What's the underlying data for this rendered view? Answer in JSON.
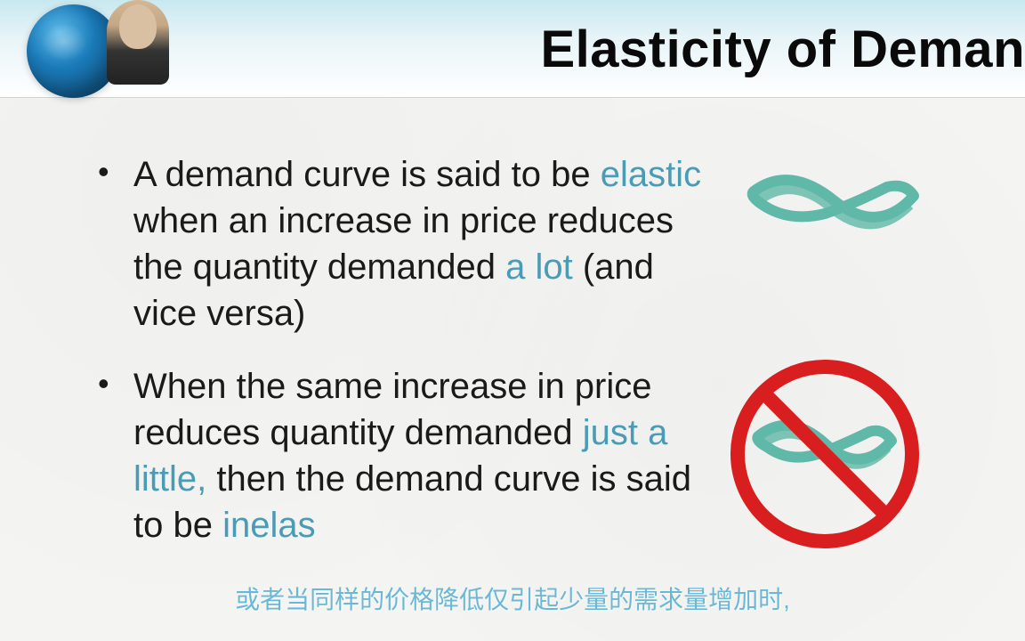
{
  "header": {
    "title": "Elasticity of Deman"
  },
  "bullets": [
    {
      "parts": [
        {
          "text": "A demand curve is said to be ",
          "highlight": false
        },
        {
          "text": "elastic",
          "highlight": true
        },
        {
          "text": " when an increase in price reduces the quantity demanded ",
          "highlight": false
        },
        {
          "text": "a lot",
          "highlight": true
        },
        {
          "text": " (and vice versa)",
          "highlight": false
        }
      ]
    },
    {
      "parts": [
        {
          "text": "When the same increase in price reduces quantity demanded ",
          "highlight": false
        },
        {
          "text": "just a little,",
          "highlight": true
        },
        {
          "text": " then the demand curve is said to be ",
          "highlight": false
        },
        {
          "text": "inelas",
          "highlight": true
        }
      ]
    }
  ],
  "subtitle": "或者当同样的价格降低仅引起少量的需求量增加时,",
  "colors": {
    "highlight": "#4a9bb5",
    "text": "#1a1a1a",
    "header_bg_top": "#c8e8f0",
    "header_bg_bottom": "#ffffff",
    "body_bg": "#f4f4f2",
    "prohibition_red": "#d81e1e",
    "rubber_band": "#5fb8a8",
    "subtitle_color": "#6bb8d6"
  },
  "typography": {
    "title_fontsize": 58,
    "body_fontsize": 40,
    "subtitle_fontsize": 28,
    "font_family": "Century Gothic"
  },
  "graphics": {
    "rubber_band_top": {
      "type": "twisted-band",
      "prohibited": false
    },
    "rubber_band_bottom": {
      "type": "twisted-band",
      "prohibited": true
    }
  }
}
